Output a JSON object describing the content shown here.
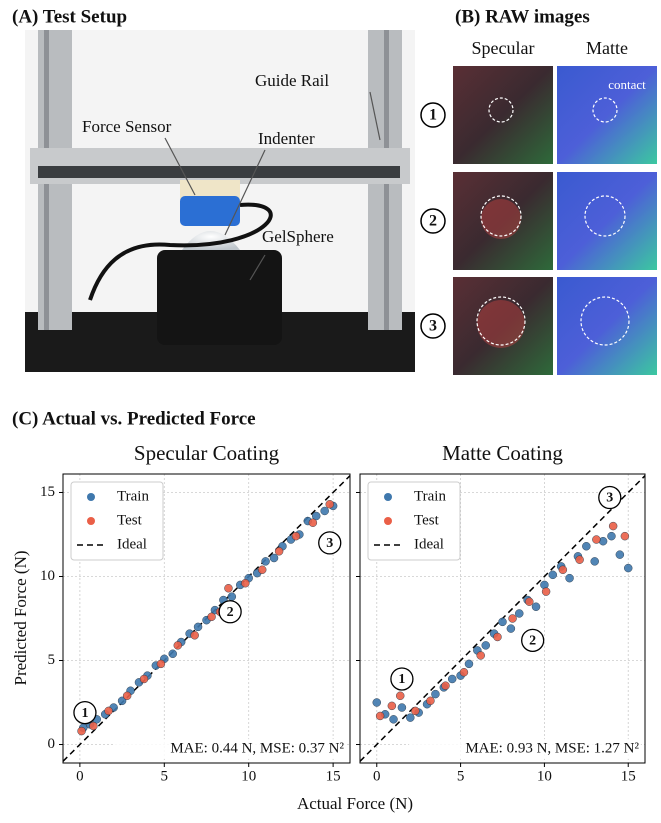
{
  "panel_a": {
    "title": "(A) Test Setup",
    "labels": {
      "rail": "Guide Rail",
      "sensor": "Force Sensor",
      "indenter": "Indenter",
      "gel": "GelSphere"
    }
  },
  "panel_b": {
    "title": "(B) RAW images",
    "columns": [
      "Specular",
      "Matte"
    ],
    "rows": [
      "1",
      "2",
      "3"
    ],
    "annotation": "contact"
  },
  "panel_c": {
    "title": "(C) Actual vs. Predicted Force",
    "xlabel": "Actual Force (N)",
    "ylabel": "Predicted Force (N)"
  },
  "chart_data": [
    {
      "type": "scatter",
      "title": "Specular Coating",
      "series": [
        {
          "name": "Train",
          "color": "#3f78ad",
          "x": [
            0.2,
            0.6,
            1.0,
            1.5,
            2.0,
            2.5,
            3.0,
            3.5,
            4.0,
            4.5,
            5.0,
            5.5,
            6.0,
            6.5,
            7.0,
            7.5,
            8.0,
            8.5,
            9.0,
            9.5,
            10.0,
            10.5,
            11.0,
            11.5,
            12.0,
            12.5,
            13.0,
            13.5,
            14.0,
            14.5,
            15.0
          ],
          "values": [
            1.0,
            1.2,
            1.5,
            1.8,
            2.2,
            2.6,
            3.2,
            3.7,
            4.1,
            4.7,
            5.1,
            5.4,
            6.1,
            6.6,
            7.0,
            7.4,
            8.0,
            8.6,
            8.8,
            9.5,
            9.9,
            10.2,
            10.9,
            11.1,
            11.8,
            12.2,
            12.5,
            13.3,
            13.6,
            13.9,
            14.2
          ]
        },
        {
          "name": "Test",
          "color": "#ea5f47",
          "x": [
            0.1,
            0.8,
            1.7,
            2.8,
            3.8,
            4.8,
            5.8,
            6.8,
            7.8,
            8.3,
            8.8,
            9.8,
            10.8,
            11.8,
            12.8,
            13.8,
            14.8
          ],
          "values": [
            0.8,
            1.1,
            2.0,
            2.9,
            3.9,
            4.8,
            5.9,
            6.5,
            7.6,
            7.9,
            9.3,
            9.6,
            10.4,
            11.5,
            12.4,
            13.2,
            14.3
          ]
        }
      ],
      "reference_line": {
        "name": "Ideal",
        "color": "#000000",
        "style": "dashed"
      },
      "xlim": [
        -1,
        16
      ],
      "ylim": [
        -1.1,
        16.1
      ],
      "xticks": [
        0,
        5,
        10,
        15
      ],
      "yticks": [
        0,
        5,
        10,
        15
      ],
      "grid": true,
      "legend": "upper left",
      "show_ytick_labels": true,
      "annotation": "MAE: 0.44 N, MSE: 0.37 N²",
      "markers": [
        {
          "label": "1",
          "x": 0.3,
          "y": 1.9
        },
        {
          "label": "2",
          "x": 8.9,
          "y": 7.9
        },
        {
          "label": "3",
          "x": 14.8,
          "y": 12.0
        }
      ]
    },
    {
      "type": "scatter",
      "title": "Matte Coating",
      "series": [
        {
          "name": "Train",
          "color": "#3f78ad",
          "x": [
            0,
            0.5,
            1.0,
            1.5,
            2.0,
            2.5,
            3.0,
            3.5,
            4.0,
            4.5,
            5.0,
            5.5,
            6.0,
            6.5,
            7.0,
            7.5,
            8.0,
            8.5,
            9.0,
            9.5,
            10.0,
            10.5,
            11.0,
            11.5,
            12.0,
            12.5,
            13.0,
            13.5,
            14.0,
            14.5,
            15.0
          ],
          "values": [
            2.5,
            1.8,
            1.5,
            2.2,
            1.6,
            1.9,
            2.4,
            3.0,
            3.4,
            3.9,
            4.1,
            4.8,
            5.6,
            5.9,
            6.6,
            7.3,
            6.9,
            7.8,
            8.6,
            8.2,
            9.5,
            10.1,
            10.6,
            9.9,
            11.2,
            11.8,
            10.9,
            12.1,
            12.4,
            11.3,
            10.5
          ]
        },
        {
          "name": "Test",
          "color": "#ea5f47",
          "x": [
            0.2,
            0.9,
            1.4,
            2.3,
            3.2,
            4.1,
            5.2,
            6.2,
            7.2,
            8.1,
            9.1,
            10.1,
            11.1,
            12.1,
            13.1,
            14.1,
            14.8
          ],
          "values": [
            1.7,
            2.3,
            2.9,
            2.0,
            2.6,
            3.5,
            4.3,
            5.3,
            6.4,
            7.5,
            8.5,
            9.1,
            10.4,
            11.0,
            12.2,
            13.0,
            12.4
          ]
        }
      ],
      "reference_line": {
        "name": "Ideal",
        "color": "#000000",
        "style": "dashed"
      },
      "xlim": [
        -1,
        16
      ],
      "ylim": [
        -1.1,
        16.1
      ],
      "xticks": [
        0,
        5,
        10,
        15
      ],
      "yticks": [
        0,
        5,
        10,
        15
      ],
      "grid": true,
      "legend": "upper left",
      "show_ytick_labels": false,
      "annotation": "MAE: 0.93 N, MSE: 1.27 N²",
      "markers": [
        {
          "label": "1",
          "x": 1.5,
          "y": 3.9
        },
        {
          "label": "2",
          "x": 9.3,
          "y": 6.2
        },
        {
          "label": "3",
          "x": 13.9,
          "y": 14.7
        }
      ]
    }
  ]
}
